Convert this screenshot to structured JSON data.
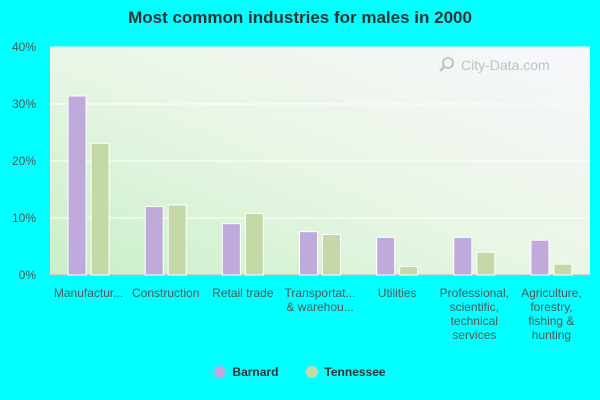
{
  "chart_data": {
    "type": "bar",
    "title": "Most common industries for males in 2000",
    "categories": [
      [
        "Manufactur..."
      ],
      [
        "Construction"
      ],
      [
        "Retail trade"
      ],
      [
        "Transportat...",
        "& warehou..."
      ],
      [
        "Utilities"
      ],
      [
        "Professional,",
        "scientific,",
        "technical",
        "services"
      ],
      [
        "Agriculture,",
        "forestry,",
        "fishing &",
        "hunting"
      ]
    ],
    "series": [
      {
        "name": "Barnard",
        "color": "#c0aadc",
        "values": [
          31.4,
          12.0,
          9.0,
          7.6,
          6.6,
          6.6,
          6.1
        ]
      },
      {
        "name": "Tennessee",
        "color": "#c5d9a8",
        "values": [
          23.1,
          12.3,
          10.8,
          7.1,
          1.5,
          4.0,
          1.9
        ]
      }
    ],
    "ylim": [
      0,
      40
    ],
    "yticks": [
      "0%",
      "10%",
      "20%",
      "30%",
      "40%"
    ],
    "ytick_values": [
      0,
      10,
      20,
      30,
      40
    ],
    "grid": true,
    "legend": "bottom-center"
  },
  "watermark": "City-Data.com"
}
